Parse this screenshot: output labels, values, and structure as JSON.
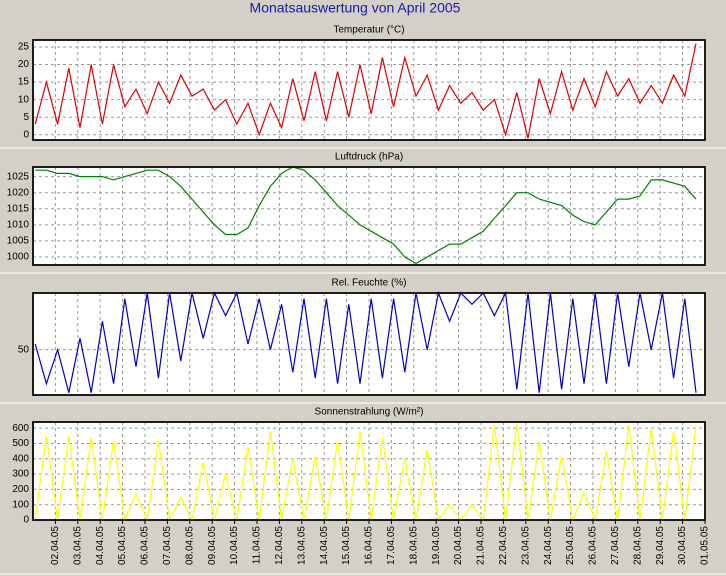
{
  "title": "Monatsauswertung von April 2005",
  "chart_data": [
    {
      "type": "line",
      "title": "Temperatur (°C)",
      "color": "#e00000",
      "xlim": [
        0,
        30
      ],
      "ylim": [
        -1.5,
        27
      ],
      "yticks": [
        0,
        5,
        10,
        15,
        20,
        25
      ],
      "xticks": [
        1,
        2,
        3,
        4,
        5,
        6,
        7,
        8,
        9,
        10,
        11,
        12,
        13,
        14,
        15,
        16,
        17,
        18,
        19,
        20,
        21,
        22,
        23,
        24,
        25,
        26,
        27,
        28,
        29,
        30
      ],
      "grid": true,
      "x": [
        0.1,
        0.6,
        1.1,
        1.6,
        2.1,
        2.6,
        3.1,
        3.6,
        4.1,
        4.6,
        5.1,
        5.6,
        6.1,
        6.6,
        7.1,
        7.6,
        8.1,
        8.6,
        9.1,
        9.6,
        10.1,
        10.6,
        11.1,
        11.6,
        12.1,
        12.6,
        13.1,
        13.6,
        14.1,
        14.6,
        15.1,
        15.6,
        16.1,
        16.6,
        17.1,
        17.6,
        18.1,
        18.6,
        19.1,
        19.6,
        20.1,
        20.6,
        21.1,
        21.6,
        22.1,
        22.6,
        23.1,
        23.6,
        24.1,
        24.6,
        25.1,
        25.6,
        26.1,
        26.6,
        27.1,
        27.6,
        28.1,
        28.6,
        29.1,
        29.6
      ],
      "values": [
        3,
        15,
        3,
        19,
        2,
        20,
        3,
        20,
        8,
        13,
        6,
        15,
        9,
        17,
        11,
        13,
        7,
        10,
        3,
        9,
        0,
        9,
        2,
        16,
        4,
        18,
        4,
        18,
        5,
        20,
        6,
        22,
        8,
        22,
        11,
        17,
        7,
        14,
        9,
        12,
        7,
        10,
        0,
        12,
        -1,
        16,
        6,
        18,
        7,
        16,
        8,
        18,
        11,
        16,
        9,
        14,
        9,
        17,
        11,
        26
      ]
    },
    {
      "type": "line",
      "title": "Luftdruck (hPa)",
      "color": "#008000",
      "xlim": [
        0,
        30
      ],
      "ylim": [
        997.5,
        1028
      ],
      "yticks": [
        1000,
        1005,
        1010,
        1015,
        1020,
        1025
      ],
      "xticks": [
        1,
        2,
        3,
        4,
        5,
        6,
        7,
        8,
        9,
        10,
        11,
        12,
        13,
        14,
        15,
        16,
        17,
        18,
        19,
        20,
        21,
        22,
        23,
        24,
        25,
        26,
        27,
        28,
        29,
        30
      ],
      "grid": true,
      "x": [
        0.1,
        0.6,
        1.1,
        1.6,
        2.1,
        2.6,
        3.1,
        3.6,
        4.1,
        4.6,
        5.1,
        5.6,
        6.1,
        6.6,
        7.1,
        7.6,
        8.1,
        8.6,
        9.1,
        9.6,
        10.1,
        10.6,
        11.1,
        11.6,
        12.1,
        12.6,
        13.1,
        13.6,
        14.1,
        14.6,
        15.1,
        15.6,
        16.1,
        16.6,
        17.1,
        17.6,
        18.1,
        18.6,
        19.1,
        19.6,
        20.1,
        20.6,
        21.1,
        21.6,
        22.1,
        22.6,
        23.1,
        23.6,
        24.1,
        24.6,
        25.1,
        25.6,
        26.1,
        26.6,
        27.1,
        27.6,
        28.1,
        28.6,
        29.1,
        29.6
      ],
      "values": [
        1027,
        1027,
        1026,
        1026,
        1025,
        1025,
        1025,
        1024,
        1025,
        1026,
        1027,
        1027,
        1025,
        1022,
        1018,
        1014,
        1010,
        1007,
        1007,
        1009,
        1016,
        1022,
        1026,
        1028,
        1027,
        1024,
        1020,
        1016,
        1013,
        1010,
        1008,
        1006,
        1004,
        1000,
        998,
        1000,
        1002,
        1004,
        1004,
        1006,
        1008,
        1012,
        1016,
        1020,
        1020,
        1018,
        1017,
        1016,
        1013,
        1011,
        1010,
        1014,
        1018,
        1018,
        1019,
        1024,
        1024,
        1023,
        1022,
        1018
      ]
    },
    {
      "type": "line",
      "title": "Rel. Feuchte (%)",
      "color": "#0000c8",
      "xlim": [
        0,
        30
      ],
      "ylim": [
        10,
        100
      ],
      "yticks": [
        50
      ],
      "xticks": [
        1,
        2,
        3,
        4,
        5,
        6,
        7,
        8,
        9,
        10,
        11,
        12,
        13,
        14,
        15,
        16,
        17,
        18,
        19,
        20,
        21,
        22,
        23,
        24,
        25,
        26,
        27,
        28,
        29,
        30
      ],
      "grid": true,
      "x": [
        0.1,
        0.6,
        1.1,
        1.6,
        2.1,
        2.6,
        3.1,
        3.6,
        4.1,
        4.6,
        5.1,
        5.6,
        6.1,
        6.6,
        7.1,
        7.6,
        8.1,
        8.6,
        9.1,
        9.6,
        10.1,
        10.6,
        11.1,
        11.6,
        12.1,
        12.6,
        13.1,
        13.6,
        14.1,
        14.6,
        15.1,
        15.6,
        16.1,
        16.6,
        17.1,
        17.6,
        18.1,
        18.6,
        19.1,
        19.6,
        20.1,
        20.6,
        21.1,
        21.6,
        22.1,
        22.6,
        23.1,
        23.6,
        24.1,
        24.6,
        25.1,
        25.6,
        26.1,
        26.6,
        27.1,
        27.6,
        28.1,
        28.6,
        29.1,
        29.6
      ],
      "values": [
        55,
        20,
        50,
        12,
        60,
        12,
        75,
        20,
        95,
        35,
        100,
        25,
        100,
        40,
        100,
        60,
        100,
        80,
        100,
        55,
        95,
        50,
        90,
        30,
        95,
        25,
        95,
        20,
        90,
        20,
        95,
        25,
        95,
        30,
        100,
        50,
        100,
        75,
        100,
        90,
        100,
        80,
        100,
        15,
        100,
        12,
        100,
        15,
        95,
        20,
        100,
        20,
        100,
        35,
        100,
        50,
        100,
        25,
        95,
        12
      ]
    },
    {
      "type": "line",
      "title": "Sonnenstrahlung (W/m²)",
      "color": "#ffff00",
      "xlim": [
        0,
        30
      ],
      "ylim": [
        0,
        640
      ],
      "yticks": [
        0,
        100,
        200,
        300,
        400,
        500,
        600
      ],
      "grid": true,
      "xticks": [
        {
          "value": 1,
          "label": "02.04.05"
        },
        {
          "value": 2,
          "label": "03.04.05"
        },
        {
          "value": 3,
          "label": "04.04.05"
        },
        {
          "value": 4,
          "label": "05.04.05"
        },
        {
          "value": 5,
          "label": "06.04.05"
        },
        {
          "value": 6,
          "label": "07.04.05"
        },
        {
          "value": 7,
          "label": "08.04.05"
        },
        {
          "value": 8,
          "label": "09.04.05"
        },
        {
          "value": 9,
          "label": "10.04.05"
        },
        {
          "value": 10,
          "label": "11.04.05"
        },
        {
          "value": 11,
          "label": "12.04.05"
        },
        {
          "value": 12,
          "label": "13.04.05"
        },
        {
          "value": 13,
          "label": "14.04.05"
        },
        {
          "value": 14,
          "label": "15.04.05"
        },
        {
          "value": 15,
          "label": "16.04.05"
        },
        {
          "value": 16,
          "label": "17.04.05"
        },
        {
          "value": 17,
          "label": "18.04.05"
        },
        {
          "value": 18,
          "label": "19.04.05"
        },
        {
          "value": 19,
          "label": "20.04.05"
        },
        {
          "value": 20,
          "label": "21.04.05"
        },
        {
          "value": 21,
          "label": "22.04.05"
        },
        {
          "value": 22,
          "label": "23.04.05"
        },
        {
          "value": 23,
          "label": "24.04.05"
        },
        {
          "value": 24,
          "label": "25.04.05"
        },
        {
          "value": 25,
          "label": "26.04.05"
        },
        {
          "value": 26,
          "label": "27.04.05"
        },
        {
          "value": 27,
          "label": "28.04.05"
        },
        {
          "value": 28,
          "label": "29.04.05"
        },
        {
          "value": 29,
          "label": "30.04.05"
        },
        {
          "value": 30,
          "label": "01.05.05"
        }
      ],
      "x": [
        0.1,
        0.6,
        1.1,
        1.6,
        2.1,
        2.6,
        3.1,
        3.6,
        4.1,
        4.6,
        5.1,
        5.6,
        6.1,
        6.6,
        7.1,
        7.6,
        8.1,
        8.6,
        9.1,
        9.6,
        10.1,
        10.6,
        11.1,
        11.6,
        12.1,
        12.6,
        13.1,
        13.6,
        14.1,
        14.6,
        15.1,
        15.6,
        16.1,
        16.6,
        17.1,
        17.6,
        18.1,
        18.6,
        19.1,
        19.6,
        20.1,
        20.6,
        21.1,
        21.6,
        22.1,
        22.6,
        23.1,
        23.6,
        24.1,
        24.6,
        25.1,
        25.6,
        26.1,
        26.6,
        27.1,
        27.6,
        28.1,
        28.6,
        29.1,
        29.6
      ],
      "values": [
        0,
        550,
        0,
        550,
        0,
        540,
        0,
        520,
        0,
        170,
        0,
        520,
        0,
        150,
        0,
        380,
        0,
        300,
        0,
        480,
        0,
        580,
        0,
        400,
        0,
        420,
        0,
        520,
        0,
        580,
        0,
        540,
        0,
        400,
        0,
        460,
        0,
        100,
        0,
        100,
        0,
        620,
        0,
        630,
        0,
        510,
        0,
        420,
        0,
        180,
        0,
        450,
        0,
        620,
        0,
        600,
        0,
        580,
        0,
        620
      ]
    }
  ]
}
